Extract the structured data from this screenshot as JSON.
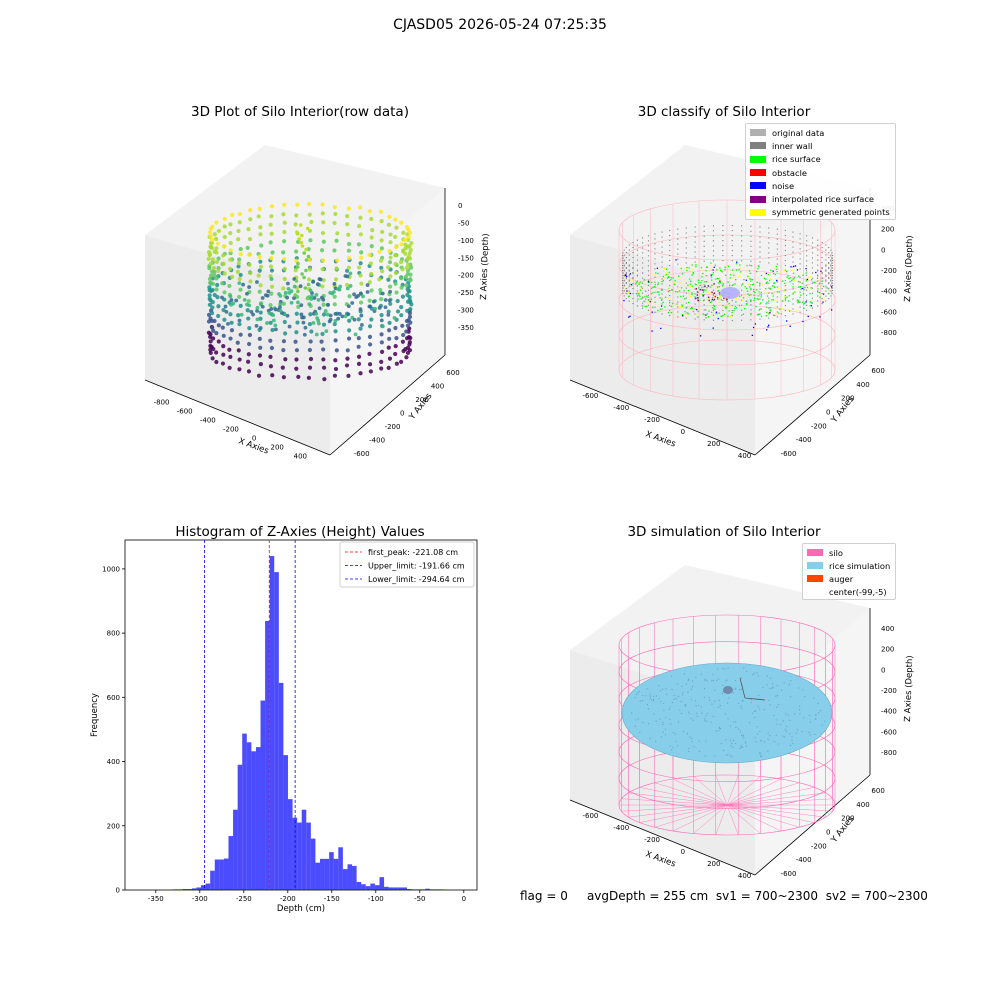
{
  "figure_title": "CJASD05 2026-05-24 07:25:35",
  "status": {
    "flag": "flag = 0",
    "avg_depth": "avgDepth = 255 cm",
    "sv1": "sv1 = 700~2300",
    "sv2": "sv2 = 700~2300"
  },
  "colors": {
    "silo": "#ff69b4",
    "rice_simulation": "#87ceeb",
    "auger": "#ff4500",
    "hist_bar": "#0000ff",
    "original_data": "#b0b0b0",
    "inner_wall": "#808080",
    "rice_surface": "#00ff00",
    "obstacle": "#ff0000",
    "noise": "#0000ff",
    "interpolated_rice_surface": "#800080",
    "symmetric_generated_points": "#ffff00"
  },
  "chart_data": [
    {
      "type": "scatter",
      "subtype": "3d",
      "title": "3D Plot of Silo Interior(row data)",
      "xlabel": "X Axies",
      "ylabel": "Y Axies",
      "zlabel": "Z Axies (Depth)",
      "x_ticks": [
        "-800",
        "-600",
        "-400",
        "-200",
        "0",
        "200",
        "400",
        "600"
      ],
      "y_ticks": [
        "-600",
        "-400",
        "-200",
        "0",
        "200",
        "400",
        "600"
      ],
      "z_ticks": [
        "0",
        "-50",
        "-100",
        "-150",
        "-200",
        "-250",
        "-300",
        "-350"
      ],
      "colormap": "viridis"
    },
    {
      "type": "scatter",
      "subtype": "3d",
      "title": "3D classify of Silo Interior",
      "xlabel": "X Axies",
      "ylabel": "Y Axies",
      "zlabel": "Z Axies (Depth)",
      "x_ticks": [
        "-600",
        "-400",
        "-200",
        "0",
        "200",
        "400"
      ],
      "y_ticks": [
        "-600",
        "-400",
        "-200",
        "0",
        "200",
        "400",
        "600"
      ],
      "z_ticks": [
        "400",
        "200",
        "0",
        "-200",
        "-400",
        "-600",
        "-800"
      ],
      "legend_position": "top-right",
      "legend": [
        {
          "label": "original data",
          "color": "#b0b0b0"
        },
        {
          "label": "inner wall",
          "color": "#808080"
        },
        {
          "label": "rice surface",
          "color": "#00ff00"
        },
        {
          "label": "obstacle",
          "color": "#ff0000"
        },
        {
          "label": "noise",
          "color": "#0000ff"
        },
        {
          "label": "interpolated rice surface",
          "color": "#800080"
        },
        {
          "label": "symmetric generated points",
          "color": "#ffff00"
        }
      ]
    },
    {
      "type": "bar",
      "subtype": "histogram",
      "title": "Histogram of Z-Axies (Height) Values",
      "xlabel": "Depth (cm)",
      "ylabel": "Frequency",
      "xlim": [
        -385,
        15
      ],
      "ylim": [
        0,
        1090
      ],
      "x_ticks": [
        -350,
        -300,
        -250,
        -200,
        -150,
        -100,
        -50,
        0
      ],
      "y_ticks": [
        0,
        200,
        400,
        600,
        800,
        1000
      ],
      "bin_width": 5.2,
      "bins": [
        [
          -370,
          1
        ],
        [
          -364.8,
          2
        ],
        [
          -359.6,
          2
        ],
        [
          -354.4,
          3
        ],
        [
          -349.2,
          3
        ],
        [
          -344,
          5
        ],
        [
          -338.8,
          8
        ],
        [
          -333.6,
          15
        ],
        [
          -328.4,
          20
        ],
        [
          -323.2,
          60
        ],
        [
          -318,
          95
        ],
        [
          -312.8,
          95
        ],
        [
          -307.6,
          98
        ],
        [
          -302.4,
          168
        ],
        [
          -297.2,
          250
        ],
        [
          -292,
          390
        ],
        [
          -286.8,
          487
        ],
        [
          -281.6,
          460
        ],
        [
          -276.4,
          432
        ],
        [
          -271.2,
          445
        ],
        [
          -266,
          590
        ],
        [
          -260.8,
          838
        ],
        [
          -255.6,
          1040
        ],
        [
          -250.4,
          990
        ],
        [
          -245.2,
          645
        ],
        [
          -240,
          420
        ],
        [
          -234.8,
          283
        ],
        [
          -229.6,
          225
        ],
        [
          -224.4,
          210
        ],
        [
          -219.2,
          250
        ],
        [
          -214,
          210
        ],
        [
          -208.8,
          160
        ],
        [
          -203.6,
          85
        ],
        [
          -198.4,
          97
        ],
        [
          -193.2,
          97
        ],
        [
          -188,
          118
        ],
        [
          -182.8,
          97
        ],
        [
          -177.6,
          133
        ],
        [
          -172.4,
          65
        ],
        [
          -167.2,
          80
        ],
        [
          -162,
          75
        ],
        [
          -156.8,
          25
        ],
        [
          -151.6,
          18
        ],
        [
          -146.4,
          12
        ],
        [
          -141.2,
          20
        ],
        [
          -136,
          15
        ],
        [
          -130.8,
          40
        ],
        [
          -125.6,
          10
        ],
        [
          -120.4,
          8
        ],
        [
          -115.2,
          8
        ],
        [
          -110,
          8
        ],
        [
          -104.8,
          8
        ],
        [
          -99.6,
          3
        ],
        [
          -94.4,
          2
        ],
        [
          -89.2,
          2
        ],
        [
          -84,
          2
        ],
        [
          -78.8,
          4
        ],
        [
          -73.6,
          2
        ],
        [
          -68.4,
          2
        ],
        [
          -63.2,
          2
        ],
        [
          -58,
          1
        ]
      ],
      "vlines": [
        {
          "x": -221.08,
          "color": "#ff0000",
          "label": "first_peak: -221.08 cm"
        },
        {
          "x": -191.66,
          "color": "#0000ff",
          "label": "Upper_limit: -191.66 cm"
        },
        {
          "x": -294.64,
          "color": "#0000ff",
          "label": "Lower_limit: -294.64 cm"
        }
      ],
      "legend_position": "top-right"
    },
    {
      "type": "scatter",
      "subtype": "3d",
      "title": "3D simulation of Silo Interior",
      "xlabel": "X Axies",
      "ylabel": "Y Axies",
      "zlabel": "Z Axies (Depth)",
      "x_ticks": [
        "-600",
        "-400",
        "-200",
        "0",
        "200",
        "400"
      ],
      "y_ticks": [
        "-600",
        "-400",
        "-200",
        "0",
        "200",
        "400",
        "600"
      ],
      "z_ticks": [
        "400",
        "200",
        "0",
        "-200",
        "-400",
        "-600",
        "-800"
      ],
      "legend_position": "top-right",
      "legend": [
        {
          "label": "silo",
          "color": "#ff69b4"
        },
        {
          "label": "rice simulation",
          "color": "#87ceeb"
        },
        {
          "label": "auger",
          "color": "#ff4500"
        },
        {
          "label": "center(-99,-5)",
          "color": ""
        }
      ]
    }
  ]
}
